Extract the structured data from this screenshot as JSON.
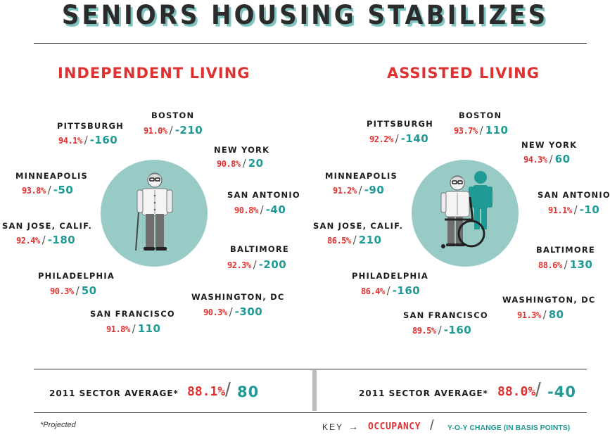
{
  "title": "SENIORS HOUSING STABILIZES",
  "panels": [
    {
      "title": "INDEPENDENT LIVING",
      "cities": [
        {
          "name": "PITTSBURGH",
          "occupancy": "94.1%",
          "change": "-160"
        },
        {
          "name": "BOSTON",
          "occupancy": "91.0%",
          "change": "-210"
        },
        {
          "name": "NEW YORK",
          "occupancy": "90.8%",
          "change": "20"
        },
        {
          "name": "MINNEAPOLIS",
          "occupancy": "93.8%",
          "change": "-50"
        },
        {
          "name": "SAN ANTONIO",
          "occupancy": "90.8%",
          "change": "-40"
        },
        {
          "name": "SAN JOSE, CALIF.",
          "occupancy": "92.4%",
          "change": "-180"
        },
        {
          "name": "BALTIMORE",
          "occupancy": "92.3%",
          "change": "-200"
        },
        {
          "name": "PHILADELPHIA",
          "occupancy": "90.3%",
          "change": "50"
        },
        {
          "name": "WASHINGTON, DC",
          "occupancy": "90.3%",
          "change": "-300"
        },
        {
          "name": "SAN FRANCISCO",
          "occupancy": "91.8%",
          "change": "110"
        }
      ],
      "average": {
        "label": "2011 SECTOR AVERAGE*",
        "occupancy": "88.1%",
        "change": "80"
      }
    },
    {
      "title": "ASSISTED LIVING",
      "cities": [
        {
          "name": "PITTSBURGH",
          "occupancy": "92.2%",
          "change": "-140"
        },
        {
          "name": "BOSTON",
          "occupancy": "93.7%",
          "change": "110"
        },
        {
          "name": "NEW YORK",
          "occupancy": "94.3%",
          "change": "60"
        },
        {
          "name": "MINNEAPOLIS",
          "occupancy": "91.2%",
          "change": "-90"
        },
        {
          "name": "SAN ANTONIO",
          "occupancy": "91.1%",
          "change": "-10"
        },
        {
          "name": "SAN JOSE, CALIF.",
          "occupancy": "86.5%",
          "change": "210"
        },
        {
          "name": "BALTIMORE",
          "occupancy": "88.6%",
          "change": "130"
        },
        {
          "name": "PHILADELPHIA",
          "occupancy": "86.4%",
          "change": "-160"
        },
        {
          "name": "WASHINGTON, DC",
          "occupancy": "91.3%",
          "change": "80"
        },
        {
          "name": "SAN FRANCISCO",
          "occupancy": "89.5%",
          "change": "-160"
        }
      ],
      "average": {
        "label": "2011 SECTOR AVERAGE*",
        "occupancy": "88.0%",
        "change": "-40"
      }
    }
  ],
  "slash": "/",
  "footnote": "*Projected",
  "key": {
    "label": "KEY",
    "arrow": "→",
    "occupancy": "OCCUPANCY",
    "slash": "/",
    "change": "Y-O-Y CHANGE (IN BASIS POINTS)"
  },
  "colors": {
    "occupancy": "#e03131",
    "change": "#1f9a94",
    "circle": "#98cbc6",
    "title_shadow": "#7fc4c0"
  },
  "icons": [
    "senior-with-cane-icon",
    "senior-in-wheelchair-with-caregiver-icon"
  ]
}
